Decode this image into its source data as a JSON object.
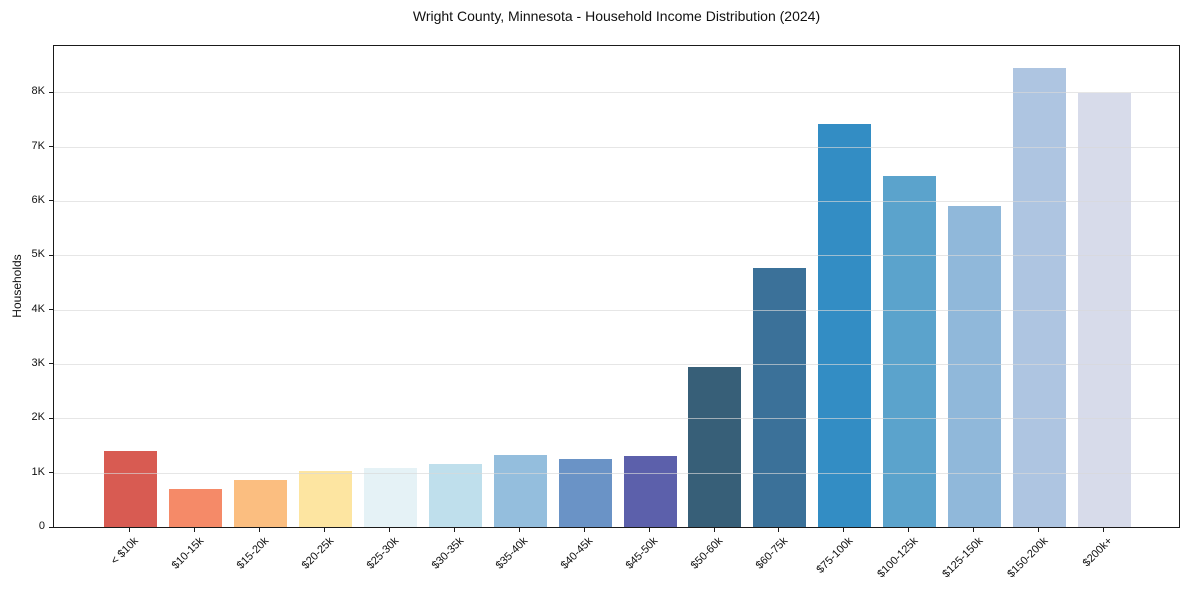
{
  "figure": {
    "kind": "matplotlib-style static bar chart"
  },
  "chart_data": {
    "type": "bar",
    "title": "Wright County, Minnesota - Household Income Distribution (2024)",
    "xlabel": "",
    "ylabel": "Households",
    "categories": [
      "< $10k",
      "$10-15k",
      "$15-20k",
      "$20-25k",
      "$25-30k",
      "$30-35k",
      "$35-40k",
      "$40-45k",
      "$45-50k",
      "$50-60k",
      "$60-75k",
      "$75-100k",
      "$100-125k",
      "$125-150k",
      "$150-200k",
      "$200k+"
    ],
    "values": [
      1400,
      700,
      870,
      1030,
      1080,
      1160,
      1320,
      1260,
      1300,
      2940,
      4760,
      7420,
      6450,
      5900,
      8440,
      7980
    ],
    "bar_colors": [
      "#d85b52",
      "#f58a68",
      "#fbbe80",
      "#fde5a1",
      "#e5f2f6",
      "#bfdfec",
      "#94bedd",
      "#6a93c6",
      "#5c60ab",
      "#375f78",
      "#3b7199",
      "#338dc4",
      "#5ba3cc",
      "#90b8da",
      "#aec5e1",
      "#d7dbea"
    ],
    "ytick_labels": [
      "0",
      "1K",
      "2K",
      "3K",
      "4K",
      "5K",
      "6K",
      "7K",
      "8K"
    ],
    "ytick_values": [
      0,
      1000,
      2000,
      3000,
      4000,
      5000,
      6000,
      7000,
      8000
    ],
    "ylim": [
      0,
      8850
    ],
    "grid": "horizontal",
    "legend": "none",
    "background_color": "#ffffff",
    "axis_color": "#1a1a1a",
    "grid_color": "#d8d8d8",
    "x_tick_label_rotation_deg": 45
  }
}
